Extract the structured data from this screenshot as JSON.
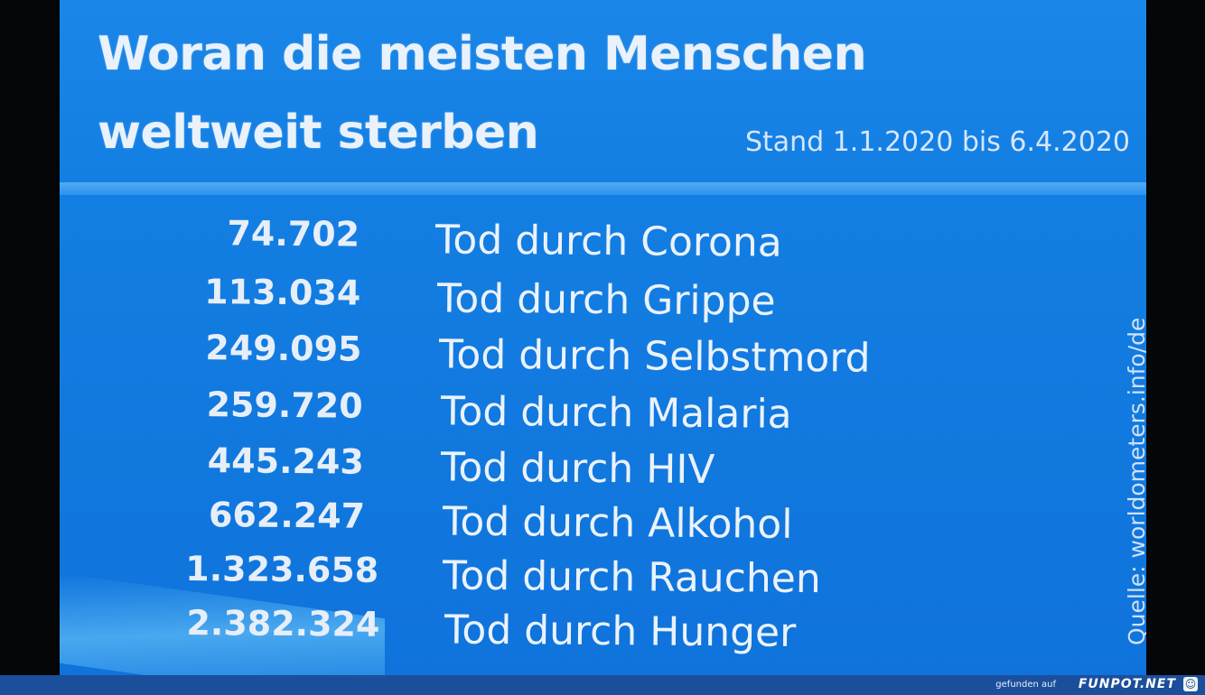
{
  "title": {
    "line1": "Woran die meisten Menschen",
    "line2": "weltweit sterben",
    "date": "Stand 1.1.2020 bis 6.4.2020"
  },
  "rows": [
    {
      "value": "74.702",
      "cause": "Tod durch Corona"
    },
    {
      "value": "113.034",
      "cause": "Tod durch Grippe"
    },
    {
      "value": "249.095",
      "cause": "Tod durch Selbstmord"
    },
    {
      "value": "259.720",
      "cause": "Tod durch Malaria"
    },
    {
      "value": "445.243",
      "cause": "Tod durch HIV"
    },
    {
      "value": "662.247",
      "cause": "Tod durch Alkohol"
    },
    {
      "value": "1.323.658",
      "cause": "Tod durch Rauchen"
    },
    {
      "value": "2.382.324",
      "cause": "Tod durch Hunger"
    }
  ],
  "source": "Quelle: worldometers.info/de",
  "footer": {
    "text": "gefunden auf",
    "logo": "FUNPOT.NET",
    "icon": "funpot-logo-icon"
  },
  "colors": {
    "background": "#137ee2",
    "text": "#e9f1fb",
    "footer": "#1b4f9c"
  }
}
